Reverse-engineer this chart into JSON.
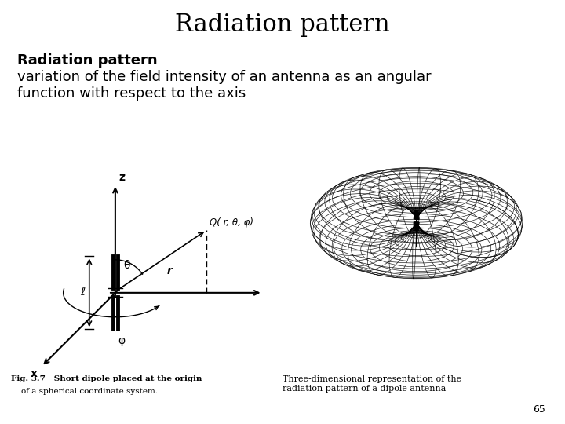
{
  "title": "Radiation pattern",
  "subtitle_bold": "Radiation pattern",
  "subtitle_text": "variation of the field intensity of an antenna as an angular\nfunction with respect to the axis",
  "fig_caption_line1": "Fig. 3.7   Short dipole placed at the origin",
  "fig_caption_line2": "    of a spherical coordinate system.",
  "right_caption": "Three-dimensional representation of the\nradiation pattern of a dipole antenna",
  "page_number": "65",
  "bg_color": "#ffffff",
  "title_fontsize": 22,
  "subtitle_fontsize": 13,
  "text_fontsize": 13
}
